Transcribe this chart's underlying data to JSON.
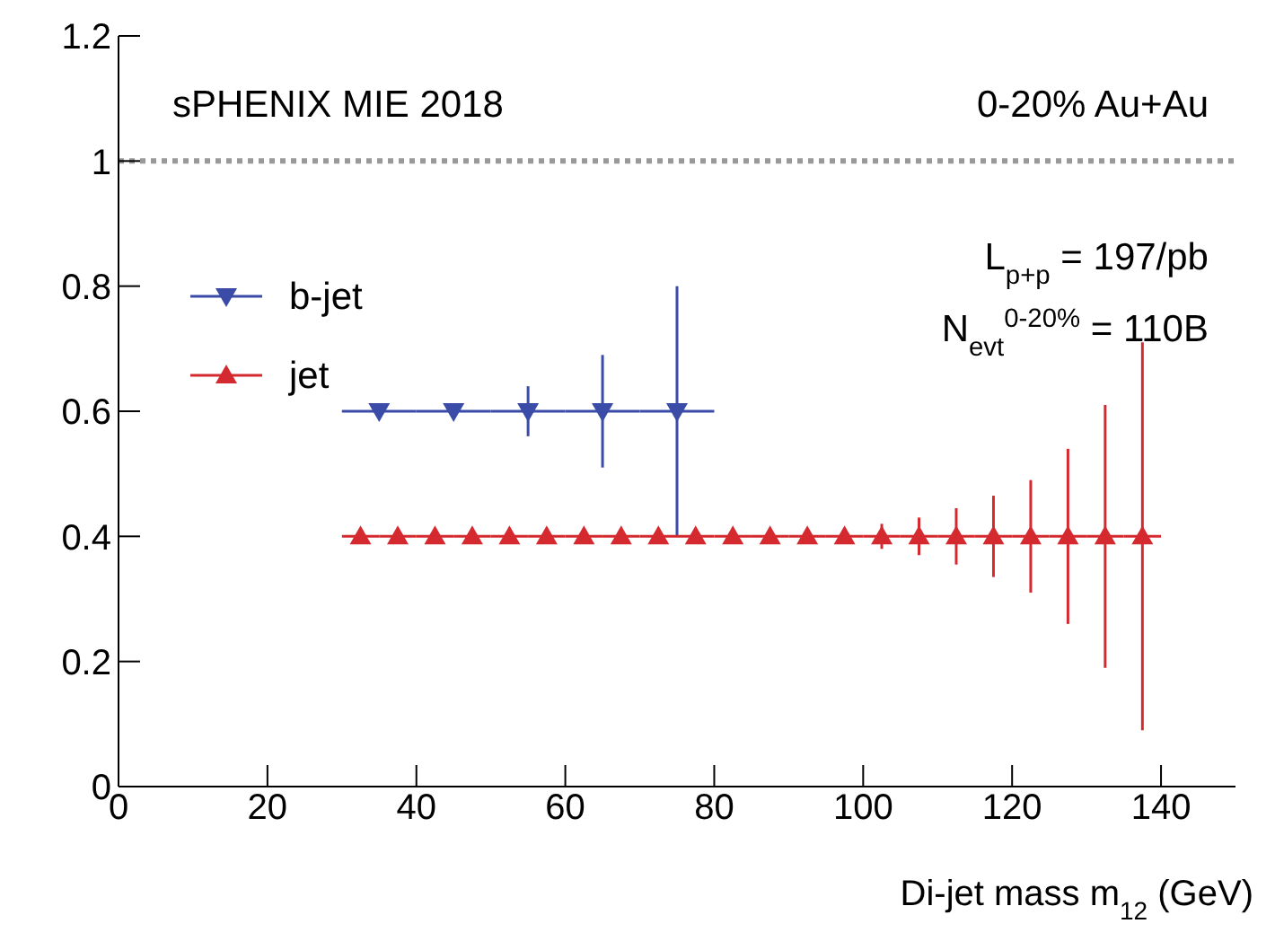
{
  "chart_data": {
    "type": "scatter",
    "xlabel": "Di-jet mass m$_{12}$ (GeV)",
    "xlim": [
      0,
      150
    ],
    "xticks": [
      0,
      20,
      40,
      60,
      80,
      100,
      120,
      140
    ],
    "ylim": [
      0,
      1.2
    ],
    "yticks": [
      0,
      0.2,
      0.4,
      0.6,
      0.8,
      1,
      1.2
    ],
    "grid": false,
    "legend": "top left",
    "ref_lines": [
      {
        "axis": "y",
        "value": 1,
        "color": "#999999",
        "line_style": "dotted"
      }
    ],
    "annotations": [
      "sPHENIX MIE 2018",
      "0-20% Au+Au",
      "L$_{p+p}$ = 197/pb",
      "N$_{evt}$$^{0-20%}$ = 110B"
    ],
    "series": [
      {
        "name": "b-jet",
        "color": "#3b4ba8",
        "marker": "triangle-down",
        "x": [
          35,
          45,
          55,
          65,
          75
        ],
        "values": [
          0.6,
          0.6,
          0.6,
          0.6,
          0.6
        ],
        "errors": [
          null,
          null,
          0.04,
          0.09,
          0.2
        ],
        "xerrors": [
          5,
          5,
          5,
          5,
          5
        ]
      },
      {
        "name": "jet",
        "color": "#d42a2f",
        "marker": "triangle",
        "x": [
          32.5,
          37.5,
          42.5,
          47.5,
          52.5,
          57.5,
          62.5,
          67.5,
          72.5,
          77.5,
          82.5,
          87.5,
          92.5,
          97.5,
          102.5,
          107.5,
          112.5,
          117.5,
          122.5,
          127.5,
          132.5,
          137.5
        ],
        "values": [
          0.4,
          0.4,
          0.4,
          0.4,
          0.4,
          0.4,
          0.4,
          0.4,
          0.4,
          0.4,
          0.4,
          0.4,
          0.4,
          0.4,
          0.4,
          0.4,
          0.4,
          0.4,
          0.4,
          0.4,
          0.4,
          0.4
        ],
        "errors": [
          null,
          null,
          null,
          null,
          null,
          null,
          null,
          null,
          null,
          null,
          null,
          null,
          null,
          null,
          0.02,
          0.03,
          0.045,
          0.065,
          0.09,
          0.14,
          0.21,
          0.31
        ],
        "xerrors": [
          2.5,
          2.5,
          2.5,
          2.5,
          2.5,
          2.5,
          2.5,
          2.5,
          2.5,
          2.5,
          2.5,
          2.5,
          2.5,
          2.5,
          2.5,
          2.5,
          2.5,
          2.5,
          2.5,
          2.5,
          2.5,
          2.5
        ]
      }
    ]
  }
}
